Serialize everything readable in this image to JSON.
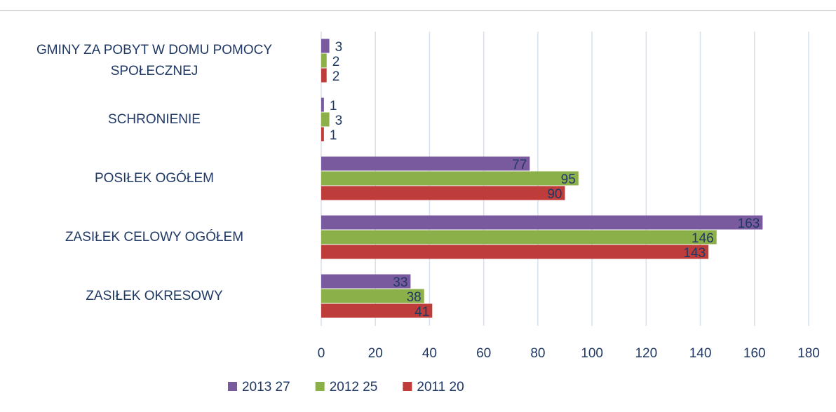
{
  "chart_data": {
    "type": "bar",
    "orientation": "horizontal",
    "categories": [
      "GMINY ZA POBYT W DOMU POMOCY SPOŁECZNEJ",
      "SCHRONIENIE",
      "POSIŁEK OGÓŁEM",
      "ZASIŁEK CELOWY OGÓŁEM",
      "ZASIŁEK OKRESOWY"
    ],
    "series": [
      {
        "name": "2013 27",
        "color": "#7a5a9e",
        "values": [
          3,
          1,
          77,
          163,
          33
        ]
      },
      {
        "name": "2012 25",
        "color": "#8bb04a",
        "values": [
          2,
          3,
          95,
          146,
          38
        ]
      },
      {
        "name": "2011 20",
        "color": "#be3d3a",
        "values": [
          2,
          1,
          90,
          143,
          41
        ]
      }
    ],
    "xlim": [
      0,
      180
    ],
    "xticks": [
      0,
      20,
      40,
      60,
      80,
      100,
      120,
      140,
      160,
      180
    ],
    "grid": true,
    "legend": "bottom"
  }
}
